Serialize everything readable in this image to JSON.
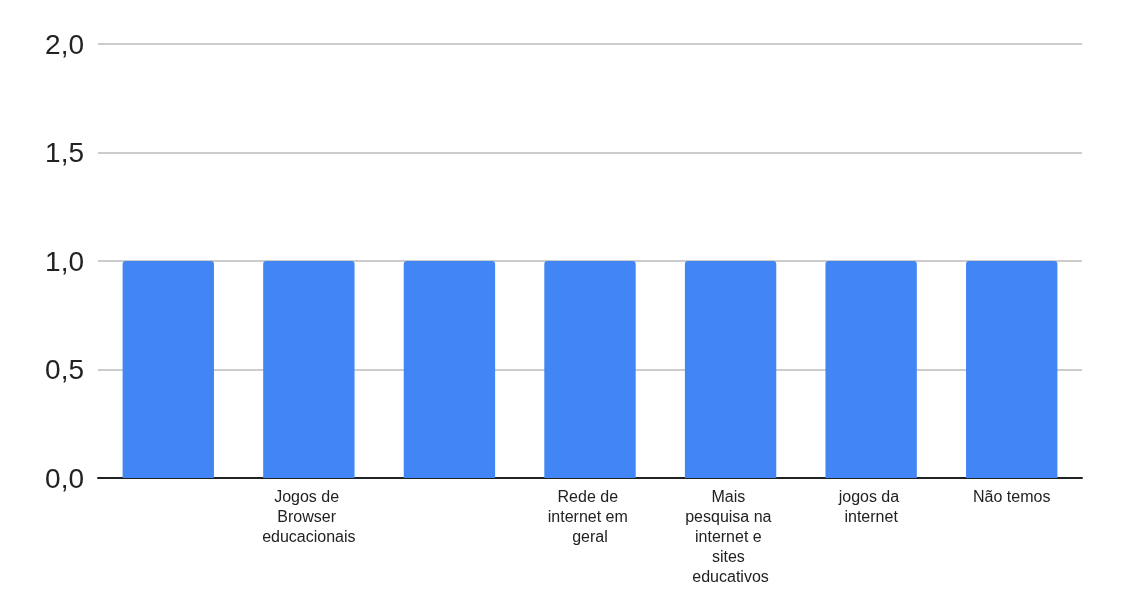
{
  "chart_data": {
    "type": "bar",
    "categories": [
      null,
      "Jogos de Browser educacionais",
      null,
      "Rede de internet em geral",
      "Mais pesquisa na internet e sites educativos",
      "jogos da internet",
      "Não temos"
    ],
    "values": [
      1,
      1,
      1,
      1,
      1,
      1,
      1
    ],
    "color": "#4285f4",
    "ylim": [
      0,
      2
    ],
    "yticks": [
      {
        "value": 0,
        "label": "0,0"
      },
      {
        "value": 0.5,
        "label": "0,5"
      },
      {
        "value": 1,
        "label": "1,0"
      },
      {
        "value": 1.5,
        "label": "1,5"
      },
      {
        "value": 2,
        "label": "2,0"
      }
    ],
    "grid": "y"
  }
}
